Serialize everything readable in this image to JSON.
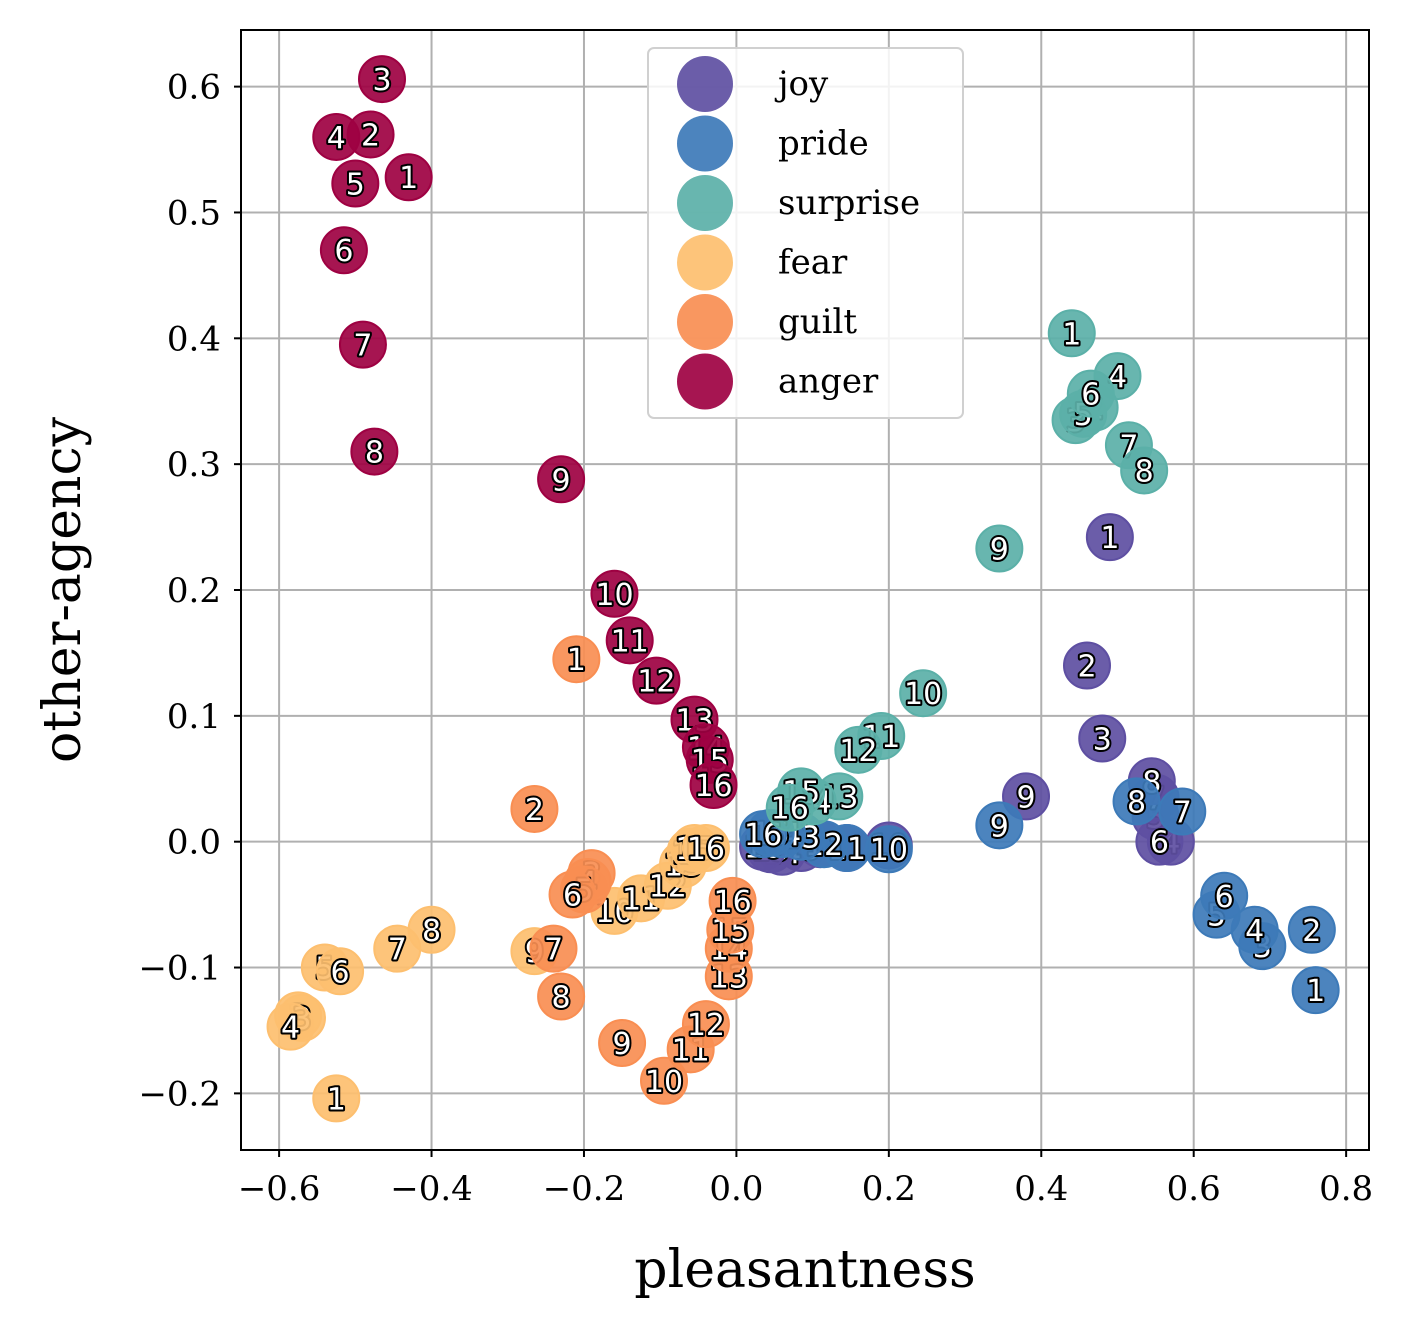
{
  "chart_data": {
    "type": "scatter",
    "xlabel": "pleasantness",
    "ylabel": "other-agency",
    "xlim": [
      -0.65,
      0.83
    ],
    "ylim": [
      -0.245,
      0.645
    ],
    "xticks": [
      -0.6,
      -0.4,
      -0.2,
      0.0,
      0.2,
      0.4,
      0.6,
      0.8
    ],
    "xtick_labels": [
      "−0.6",
      "−0.4",
      "−0.2",
      "0.0",
      "0.2",
      "0.4",
      "0.6",
      "0.8"
    ],
    "yticks": [
      -0.2,
      -0.1,
      0.0,
      0.1,
      0.2,
      0.3,
      0.4,
      0.5,
      0.6
    ],
    "ytick_labels": [
      "−0.2",
      "−0.1",
      "0.0",
      "0.1",
      "0.2",
      "0.3",
      "0.4",
      "0.5",
      "0.6"
    ],
    "grid": true,
    "legend_position": "top-center",
    "series": [
      {
        "name": "joy",
        "color": "#5e4fa2",
        "points": [
          {
            "label": "1",
            "x": 0.49,
            "y": 0.242
          },
          {
            "label": "2",
            "x": 0.46,
            "y": 0.14
          },
          {
            "label": "3",
            "x": 0.48,
            "y": 0.082
          },
          {
            "label": "4",
            "x": 0.57,
            "y": 0.0
          },
          {
            "label": "5",
            "x": 0.55,
            "y": 0.02
          },
          {
            "label": "6",
            "x": 0.555,
            "y": 0.0
          },
          {
            "label": "7",
            "x": 0.55,
            "y": 0.035
          },
          {
            "label": "8",
            "x": 0.545,
            "y": 0.048
          },
          {
            "label": "9",
            "x": 0.38,
            "y": 0.036
          },
          {
            "label": "10",
            "x": 0.2,
            "y": -0.003
          },
          {
            "label": "11",
            "x": 0.145,
            "y": -0.005
          },
          {
            "label": "12",
            "x": 0.11,
            "y": -0.002
          },
          {
            "label": "13",
            "x": 0.085,
            "y": -0.005
          },
          {
            "label": "14",
            "x": 0.06,
            "y": -0.008
          },
          {
            "label": "15",
            "x": 0.045,
            "y": -0.006
          },
          {
            "label": "16",
            "x": 0.035,
            "y": -0.004
          }
        ]
      },
      {
        "name": "pride",
        "color": "#3d7ab8",
        "points": [
          {
            "label": "1",
            "x": 0.76,
            "y": -0.118
          },
          {
            "label": "2",
            "x": 0.755,
            "y": -0.07
          },
          {
            "label": "3",
            "x": 0.69,
            "y": -0.083
          },
          {
            "label": "4",
            "x": 0.68,
            "y": -0.07
          },
          {
            "label": "5",
            "x": 0.63,
            "y": -0.058
          },
          {
            "label": "6",
            "x": 0.64,
            "y": -0.043
          },
          {
            "label": "7",
            "x": 0.585,
            "y": 0.024
          },
          {
            "label": "8",
            "x": 0.525,
            "y": 0.032
          },
          {
            "label": "9",
            "x": 0.345,
            "y": 0.013
          },
          {
            "label": "10",
            "x": 0.2,
            "y": -0.006
          },
          {
            "label": "11",
            "x": 0.145,
            "y": -0.005
          },
          {
            "label": "12",
            "x": 0.115,
            "y": -0.002
          },
          {
            "label": "13",
            "x": 0.085,
            "y": 0.004
          },
          {
            "label": "14",
            "x": 0.06,
            "y": 0.006
          },
          {
            "label": "15",
            "x": 0.045,
            "y": 0.007
          },
          {
            "label": "16",
            "x": 0.035,
            "y": 0.006
          }
        ]
      },
      {
        "name": "surprise",
        "color": "#5bb0a8",
        "points": [
          {
            "label": "1",
            "x": 0.44,
            "y": 0.404
          },
          {
            "label": "2",
            "x": 0.47,
            "y": 0.345
          },
          {
            "label": "3",
            "x": 0.445,
            "y": 0.335
          },
          {
            "label": "4",
            "x": 0.5,
            "y": 0.37
          },
          {
            "label": "5",
            "x": 0.455,
            "y": 0.34
          },
          {
            "label": "6",
            "x": 0.465,
            "y": 0.356
          },
          {
            "label": "7",
            "x": 0.515,
            "y": 0.315
          },
          {
            "label": "8",
            "x": 0.535,
            "y": 0.295
          },
          {
            "label": "9",
            "x": 0.345,
            "y": 0.233
          },
          {
            "label": "10",
            "x": 0.245,
            "y": 0.118
          },
          {
            "label": "11",
            "x": 0.19,
            "y": 0.084
          },
          {
            "label": "12",
            "x": 0.16,
            "y": 0.073
          },
          {
            "label": "13",
            "x": 0.135,
            "y": 0.036
          },
          {
            "label": "14",
            "x": 0.1,
            "y": 0.032
          },
          {
            "label": "15",
            "x": 0.085,
            "y": 0.04
          },
          {
            "label": "16",
            "x": 0.07,
            "y": 0.027
          }
        ]
      },
      {
        "name": "fear",
        "color": "#fdbf6f",
        "points": [
          {
            "label": "1",
            "x": -0.525,
            "y": -0.204
          },
          {
            "label": "2",
            "x": -0.575,
            "y": -0.138
          },
          {
            "label": "3",
            "x": -0.57,
            "y": -0.14
          },
          {
            "label": "4",
            "x": -0.585,
            "y": -0.147
          },
          {
            "label": "5",
            "x": -0.54,
            "y": -0.1
          },
          {
            "label": "6",
            "x": -0.52,
            "y": -0.103
          },
          {
            "label": "7",
            "x": -0.445,
            "y": -0.085
          },
          {
            "label": "8",
            "x": -0.4,
            "y": -0.07
          },
          {
            "label": "9",
            "x": -0.265,
            "y": -0.087
          },
          {
            "label": "10",
            "x": -0.16,
            "y": -0.055
          },
          {
            "label": "11",
            "x": -0.125,
            "y": -0.045
          },
          {
            "label": "12",
            "x": -0.09,
            "y": -0.035
          },
          {
            "label": "13",
            "x": -0.07,
            "y": -0.018
          },
          {
            "label": "14",
            "x": -0.06,
            "y": -0.008
          },
          {
            "label": "15",
            "x": -0.055,
            "y": -0.005
          },
          {
            "label": "16",
            "x": -0.04,
            "y": -0.005
          }
        ]
      },
      {
        "name": "guilt",
        "color": "#f98e52",
        "points": [
          {
            "label": "1",
            "x": -0.21,
            "y": 0.145
          },
          {
            "label": "2",
            "x": -0.265,
            "y": 0.026
          },
          {
            "label": "3",
            "x": -0.19,
            "y": -0.025
          },
          {
            "label": "4",
            "x": -0.195,
            "y": -0.032
          },
          {
            "label": "5",
            "x": -0.2,
            "y": -0.038
          },
          {
            "label": "6",
            "x": -0.215,
            "y": -0.042
          },
          {
            "label": "7",
            "x": -0.24,
            "y": -0.085
          },
          {
            "label": "8",
            "x": -0.23,
            "y": -0.123
          },
          {
            "label": "9",
            "x": -0.15,
            "y": -0.16
          },
          {
            "label": "10",
            "x": -0.095,
            "y": -0.19
          },
          {
            "label": "11",
            "x": -0.06,
            "y": -0.165
          },
          {
            "label": "12",
            "x": -0.04,
            "y": -0.145
          },
          {
            "label": "13",
            "x": -0.01,
            "y": -0.107
          },
          {
            "label": "14",
            "x": -0.01,
            "y": -0.085
          },
          {
            "label": "15",
            "x": -0.008,
            "y": -0.07
          },
          {
            "label": "16",
            "x": -0.005,
            "y": -0.047
          }
        ]
      },
      {
        "name": "anger",
        "color": "#9e0142",
        "points": [
          {
            "label": "1",
            "x": -0.43,
            "y": 0.528
          },
          {
            "label": "2",
            "x": -0.48,
            "y": 0.562
          },
          {
            "label": "3",
            "x": -0.465,
            "y": 0.606
          },
          {
            "label": "4",
            "x": -0.525,
            "y": 0.56
          },
          {
            "label": "5",
            "x": -0.5,
            "y": 0.523
          },
          {
            "label": "6",
            "x": -0.515,
            "y": 0.47
          },
          {
            "label": "7",
            "x": -0.49,
            "y": 0.395
          },
          {
            "label": "8",
            "x": -0.475,
            "y": 0.31
          },
          {
            "label": "9",
            "x": -0.23,
            "y": 0.288
          },
          {
            "label": "10",
            "x": -0.16,
            "y": 0.197
          },
          {
            "label": "11",
            "x": -0.14,
            "y": 0.16
          },
          {
            "label": "12",
            "x": -0.105,
            "y": 0.128
          },
          {
            "label": "13",
            "x": -0.055,
            "y": 0.097
          },
          {
            "label": "14",
            "x": -0.04,
            "y": 0.075
          },
          {
            "label": "15",
            "x": -0.035,
            "y": 0.065
          },
          {
            "label": "16",
            "x": -0.03,
            "y": 0.045
          }
        ]
      }
    ]
  }
}
